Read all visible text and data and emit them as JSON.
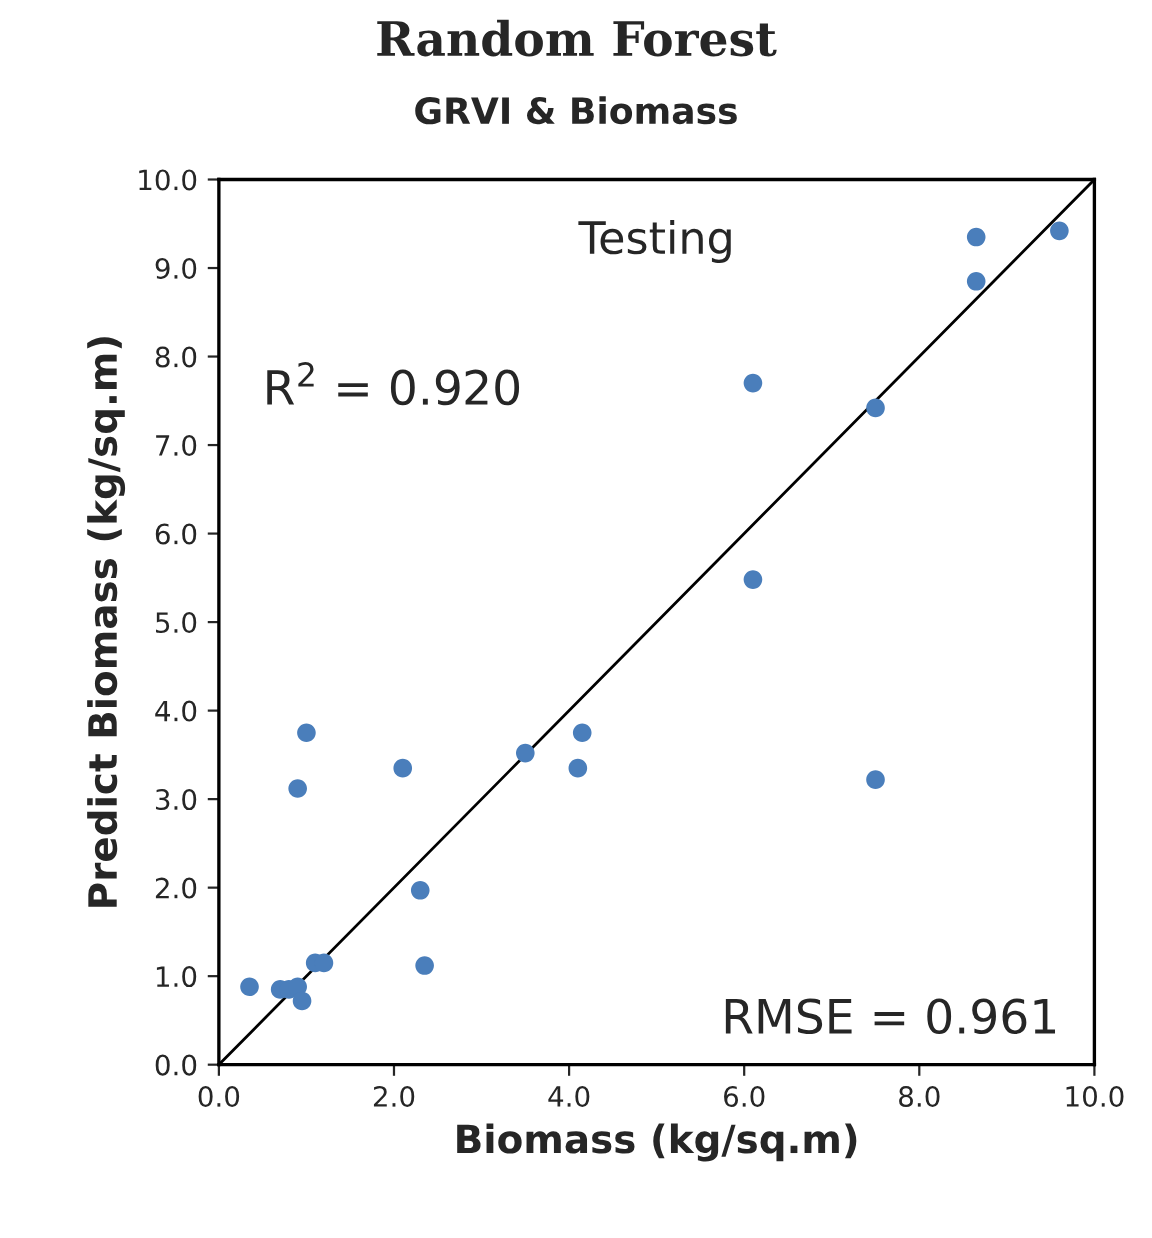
{
  "chart_data": {
    "type": "scatter",
    "title": "Random Forest",
    "subtitle": "GRVI & Biomass",
    "xlabel": "Biomass (kg/sq.m)",
    "ylabel": "Predict Biomass (kg/sq.m)",
    "annotations": [
      "Testing",
      "R$^{2}$ = 0.920",
      "RMSE = 0.961"
    ],
    "series": [
      {
        "color": "#4a7ebb",
        "marker": "circle",
        "x": [
          0.35,
          0.7,
          0.8,
          0.9,
          0.95,
          0.9,
          1.0,
          1.1,
          1.2,
          2.1,
          2.3,
          2.35,
          3.5,
          4.1,
          4.15,
          6.1,
          6.1,
          7.5,
          7.5,
          8.65,
          8.65,
          9.6
        ],
        "values": [
          0.88,
          0.85,
          0.85,
          0.88,
          0.72,
          3.12,
          3.75,
          1.15,
          1.15,
          3.35,
          1.97,
          1.12,
          3.52,
          3.35,
          3.75,
          7.7,
          5.48,
          7.42,
          3.22,
          9.35,
          8.85,
          9.42
        ]
      },
      {
        "type": "line",
        "color": "#000000",
        "x": [
          0,
          10
        ],
        "values": [
          0,
          10
        ]
      }
    ],
    "xlim": [
      0,
      10
    ],
    "ylim": [
      0,
      10
    ],
    "xticks": [
      {
        "value": 0,
        "label": "0.0"
      },
      {
        "value": 2,
        "label": "2.0"
      },
      {
        "value": 4,
        "label": "4.0"
      },
      {
        "value": 6,
        "label": "6.0"
      },
      {
        "value": 8,
        "label": "8.0"
      },
      {
        "value": 10,
        "label": "10.0"
      }
    ],
    "yticks": [
      {
        "value": 0,
        "label": "0.0"
      },
      {
        "value": 1,
        "label": "1.0"
      },
      {
        "value": 2,
        "label": "2.0"
      },
      {
        "value": 3,
        "label": "3.0"
      },
      {
        "value": 4,
        "label": "4.0"
      },
      {
        "value": 5,
        "label": "5.0"
      },
      {
        "value": 6,
        "label": "6.0"
      },
      {
        "value": 7,
        "label": "7.0"
      },
      {
        "value": 8,
        "label": "8.0"
      },
      {
        "value": 9,
        "label": "9.0"
      },
      {
        "value": 10,
        "label": "10.0"
      }
    ],
    "grid": false
  }
}
